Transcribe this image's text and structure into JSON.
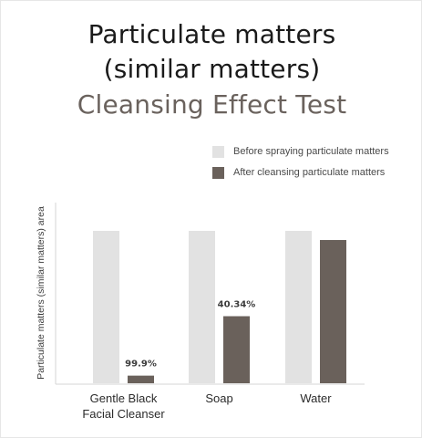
{
  "chart_data": {
    "type": "bar",
    "title_lines": [
      "Particulate matters",
      "(similar matters)",
      "Cleansing Effect Test"
    ],
    "ylabel": "Particulate matters (similar matters) area",
    "xlabel": "",
    "ylim": [
      0,
      100
    ],
    "categories": [
      [
        "Gentle Black",
        "Facial Cleanser"
      ],
      [
        "Soap"
      ],
      [
        "Water"
      ]
    ],
    "series": [
      {
        "name": "Before spraying particulate matters",
        "color": "#e2e2e2",
        "values": [
          100,
          100,
          100
        ]
      },
      {
        "name": "After cleansing particulate matters",
        "color": "#6a615b",
        "values": [
          5,
          44,
          94
        ]
      }
    ],
    "data_labels": [
      "99.9%",
      "40.34%",
      ""
    ],
    "legend_position": "top-right",
    "grid": false
  }
}
